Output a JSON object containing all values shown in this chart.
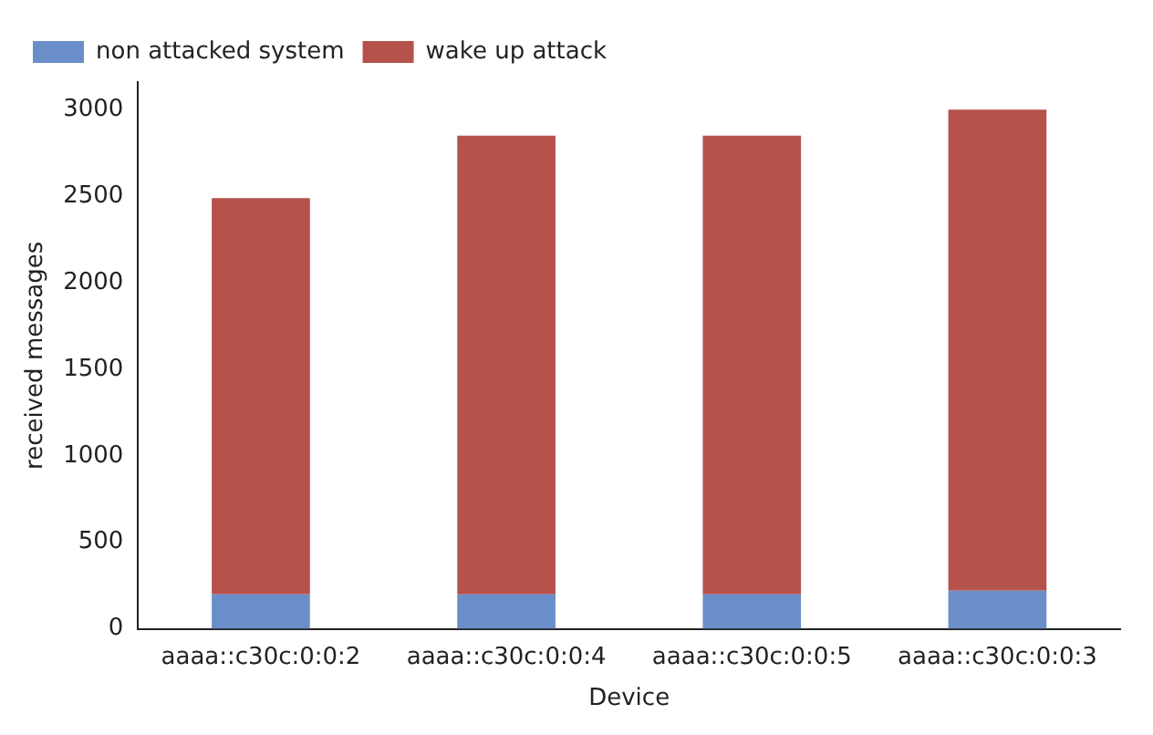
{
  "chart_data": {
    "type": "bar",
    "stacked": true,
    "xlabel": "Device",
    "ylabel": "received messages",
    "categories": [
      "aaaa::c30c:0:0:2",
      "aaaa::c30c:0:0:4",
      "aaaa::c30c:0:0:5",
      "aaaa::c30c:0:0:3"
    ],
    "series": [
      {
        "name": "non attacked system",
        "color": "#6a8ec8",
        "values": [
          200,
          200,
          200,
          220
        ]
      },
      {
        "name": "wake up attack",
        "color": "#b5524c",
        "values": [
          2290,
          2650,
          2650,
          2780
        ]
      }
    ],
    "ylim": [
      0,
      3160
    ],
    "yticks": [
      0,
      500,
      1000,
      1500,
      2000,
      2500,
      3000
    ],
    "grid": false,
    "legend": "top left"
  }
}
